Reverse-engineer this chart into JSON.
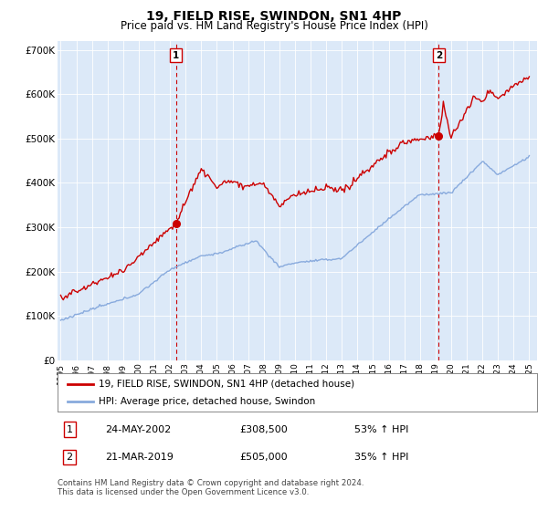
{
  "title": "19, FIELD RISE, SWINDON, SN1 4HP",
  "subtitle": "Price paid vs. HM Land Registry's House Price Index (HPI)",
  "plot_bg_color": "#dce9f8",
  "ylim": [
    0,
    720000
  ],
  "yticks": [
    0,
    100000,
    200000,
    300000,
    400000,
    500000,
    600000,
    700000
  ],
  "ytick_labels": [
    "£0",
    "£100K",
    "£200K",
    "£300K",
    "£400K",
    "£500K",
    "£600K",
    "£700K"
  ],
  "year_start": 1995,
  "year_end": 2025,
  "sale1_year": 2002.38,
  "sale1_price": 308500,
  "sale2_year": 2019.21,
  "sale2_price": 505000,
  "sale1_date": "24-MAY-2002",
  "sale1_amount": "£308,500",
  "sale1_hpi": "53% ↑ HPI",
  "sale2_date": "21-MAR-2019",
  "sale2_amount": "£505,000",
  "sale2_hpi": "35% ↑ HPI",
  "legend_line1": "19, FIELD RISE, SWINDON, SN1 4HP (detached house)",
  "legend_line2": "HPI: Average price, detached house, Swindon",
  "footer": "Contains HM Land Registry data © Crown copyright and database right 2024.\nThis data is licensed under the Open Government Licence v3.0.",
  "red_color": "#cc0000",
  "blue_color": "#88aadd",
  "vline_color": "#cc0000",
  "grid_color": "#ffffff",
  "title_fontsize": 10,
  "subtitle_fontsize": 8.5
}
